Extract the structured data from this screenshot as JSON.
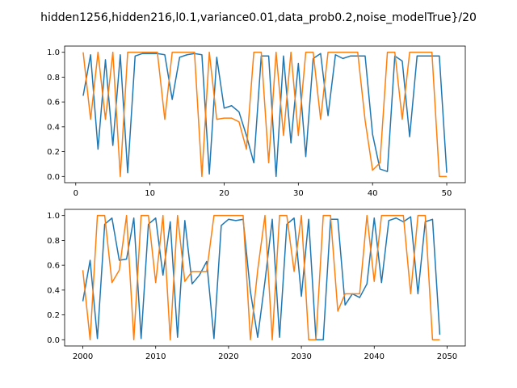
{
  "chart_data": {
    "title": "hidden1256,hidden216,l0.1,variance0.01,data_prob0.2,noise_modelTrue}/20",
    "colors": {
      "series1": "#1f77b4",
      "series2": "#ff7f0e"
    },
    "charts": [
      {
        "type": "line",
        "grid": false,
        "xlim": [
          -1.5,
          52.5
        ],
        "ylim": [
          -0.05,
          1.05
        ],
        "xticks": [
          0,
          10,
          20,
          30,
          40,
          50
        ],
        "yticks": [
          "0.0",
          "0.2",
          "0.4",
          "0.6",
          "0.8",
          "1.0"
        ],
        "x": [
          1,
          2,
          3,
          4,
          5,
          6,
          7,
          8,
          9,
          10,
          11,
          12,
          13,
          14,
          15,
          16,
          17,
          18,
          19,
          20,
          21,
          22,
          23,
          24,
          25,
          26,
          27,
          28,
          29,
          30,
          31,
          32,
          33,
          34,
          35,
          36,
          37,
          38,
          39,
          40,
          41,
          42,
          43,
          44,
          45,
          46,
          47,
          48,
          49,
          50
        ],
        "series": [
          {
            "values": [
              0.65,
              0.98,
              0.22,
              0.94,
              0.25,
              0.98,
              0.03,
              0.97,
              0.99,
              0.99,
              0.99,
              0.98,
              0.62,
              0.96,
              0.98,
              0.99,
              0.98,
              0.02,
              0.96,
              0.55,
              0.57,
              0.52,
              0.33,
              0.11,
              0.97,
              0.97,
              0.0,
              0.97,
              0.27,
              0.91,
              0.16,
              0.95,
              0.99,
              0.49,
              0.98,
              0.95,
              0.97,
              0.97,
              0.97,
              0.34,
              0.06,
              0.04,
              0.97,
              0.93,
              0.32,
              0.97,
              0.97,
              0.97,
              0.97,
              0.03
            ]
          },
          {
            "values": [
              1.0,
              0.46,
              1.0,
              0.46,
              1.0,
              0.0,
              1.0,
              1.0,
              1.0,
              1.0,
              1.0,
              0.46,
              1.0,
              1.0,
              1.0,
              1.0,
              0.0,
              1.0,
              0.46,
              0.47,
              0.47,
              0.44,
              0.22,
              1.0,
              1.0,
              0.11,
              1.0,
              0.33,
              1.0,
              0.33,
              1.0,
              1.0,
              0.46,
              1.0,
              1.0,
              1.0,
              1.0,
              1.0,
              0.45,
              0.05,
              0.11,
              1.0,
              1.0,
              0.46,
              1.0,
              1.0,
              1.0,
              1.0,
              0.0,
              0.0
            ]
          }
        ]
      },
      {
        "type": "line",
        "grid": false,
        "xlim": [
          1997.5,
          2052.5
        ],
        "ylim": [
          -0.05,
          1.05
        ],
        "xticks": [
          2000,
          2010,
          2020,
          2030,
          2040,
          2050
        ],
        "yticks": [
          "0.0",
          "0.2",
          "0.4",
          "0.6",
          "0.8",
          "1.0"
        ],
        "x": [
          2000,
          2001,
          2002,
          2003,
          2004,
          2005,
          2006,
          2007,
          2008,
          2009,
          2010,
          2011,
          2012,
          2013,
          2014,
          2015,
          2016,
          2017,
          2018,
          2019,
          2020,
          2021,
          2022,
          2023,
          2024,
          2025,
          2026,
          2027,
          2028,
          2029,
          2030,
          2031,
          2032,
          2033,
          2034,
          2035,
          2036,
          2037,
          2038,
          2039,
          2040,
          2041,
          2042,
          2043,
          2044,
          2045,
          2046,
          2047,
          2048,
          2049
        ],
        "series": [
          {
            "values": [
              0.31,
              0.64,
              0.01,
              0.93,
              0.98,
              0.64,
              0.65,
              0.98,
              0.01,
              0.93,
              0.98,
              0.52,
              0.95,
              0.02,
              0.96,
              0.45,
              0.52,
              0.63,
              0.01,
              0.92,
              0.97,
              0.96,
              0.97,
              0.39,
              0.02,
              0.47,
              0.97,
              0.02,
              0.93,
              0.98,
              0.35,
              0.97,
              0.0,
              0.0,
              0.97,
              0.97,
              0.28,
              0.37,
              0.34,
              0.45,
              0.98,
              0.46,
              0.96,
              0.98,
              0.95,
              0.99,
              0.37,
              0.95,
              0.97,
              0.04
            ]
          },
          {
            "values": [
              0.56,
              0.0,
              1.0,
              1.0,
              0.46,
              0.56,
              1.0,
              0.0,
              1.0,
              1.0,
              0.46,
              1.0,
              0.0,
              1.0,
              0.47,
              0.55,
              0.55,
              0.55,
              1.0,
              1.0,
              1.0,
              1.0,
              1.0,
              0.0,
              0.56,
              1.0,
              0.0,
              1.0,
              1.0,
              0.55,
              1.0,
              0.0,
              0.0,
              1.0,
              1.0,
              0.23,
              0.37,
              0.37,
              0.37,
              1.0,
              0.47,
              1.0,
              1.0,
              1.0,
              1.0,
              0.37,
              1.0,
              1.0,
              0.0,
              0.0
            ]
          }
        ]
      }
    ]
  }
}
